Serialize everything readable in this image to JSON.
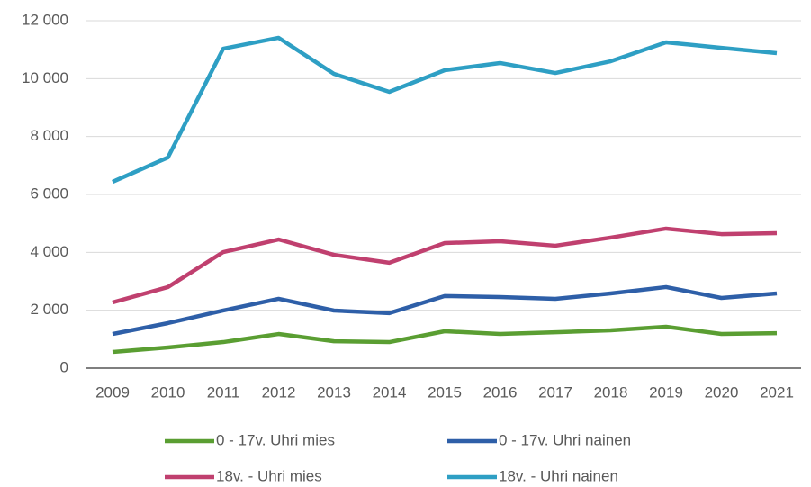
{
  "chart_data": {
    "type": "line",
    "categories": [
      "2009",
      "2010",
      "2011",
      "2012",
      "2013",
      "2014",
      "2015",
      "2016",
      "2017",
      "2018",
      "2019",
      "2020",
      "2021"
    ],
    "series": [
      {
        "name": "0 - 17v. Uhri mies",
        "color": "#5a9e32",
        "values": [
          560,
          715,
          900,
          1180,
          930,
          900,
          1275,
          1180,
          1240,
          1305,
          1430,
          1180,
          1210
        ]
      },
      {
        "name": "0 - 17v. Uhri nainen",
        "color": "#2e5fa8",
        "values": [
          1180,
          1555,
          1990,
          2395,
          1990,
          1900,
          2490,
          2455,
          2395,
          2580,
          2800,
          2425,
          2580
        ]
      },
      {
        "name": "18v. - Uhri mies",
        "color": "#c0406f",
        "values": [
          2270,
          2800,
          4010,
          4445,
          3915,
          3640,
          4320,
          4385,
          4230,
          4510,
          4820,
          4630,
          4665
        ]
      },
      {
        "name": "18v. - Uhri nainen",
        "color": "#2e9fc4",
        "values": [
          6435,
          7275,
          11035,
          11410,
          10165,
          9545,
          10290,
          10540,
          10195,
          10600,
          11255,
          11065,
          10880
        ]
      }
    ],
    "ylim": [
      0,
      12000
    ],
    "yticks": [
      0,
      {
        "value": 2000,
        "label": "2 000"
      },
      {
        "value": 4000,
        "label": "4 000"
      },
      {
        "value": 6000,
        "label": "6 000"
      },
      {
        "value": 8000,
        "label": "8 000"
      },
      {
        "value": 10000,
        "label": "10 000"
      },
      {
        "value": 12000,
        "label": "12 000"
      }
    ],
    "grid": true,
    "legend": "bottom"
  }
}
